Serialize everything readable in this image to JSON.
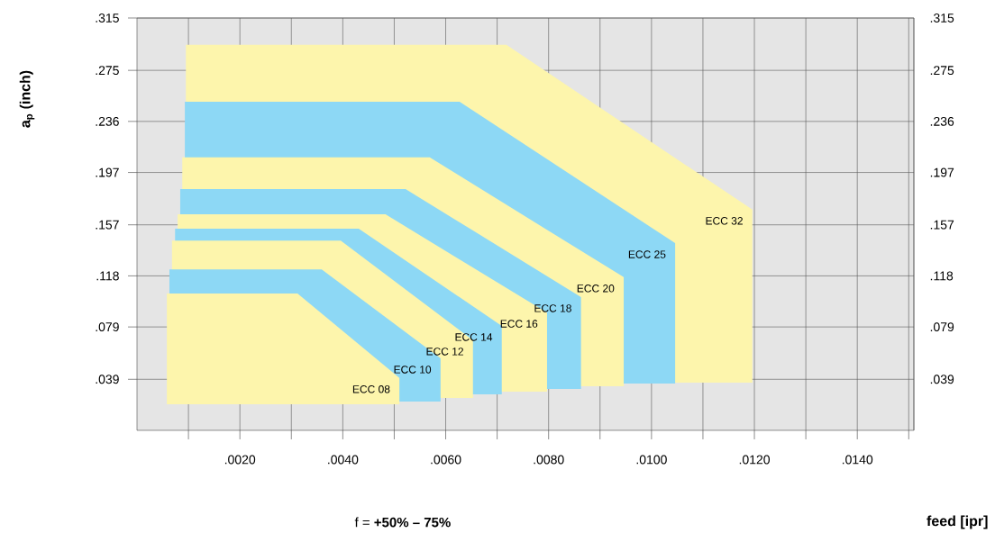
{
  "chart_data": {
    "type": "area",
    "xlabel": "feed [ipr]",
    "ylabel": "**a$_{p}$ (inch)**",
    "annotations": [
      "f = **+50% – 75%**"
    ],
    "xlim": [
      0,
      0.0151
    ],
    "ylim": [
      0,
      0.315
    ],
    "y2lim": [
      0,
      0.315
    ],
    "xticks": [
      {
        "value": 0.001,
        "label": null
      },
      {
        "value": 0.002,
        "label": ".0020"
      },
      {
        "value": 0.003,
        "label": null
      },
      {
        "value": 0.004,
        "label": ".0040"
      },
      {
        "value": 0.005,
        "label": null
      },
      {
        "value": 0.006,
        "label": ".0060"
      },
      {
        "value": 0.007,
        "label": null
      },
      {
        "value": 0.008,
        "label": ".0080"
      },
      {
        "value": 0.009,
        "label": null
      },
      {
        "value": 0.01,
        "label": ".0100"
      },
      {
        "value": 0.011,
        "label": null
      },
      {
        "value": 0.012,
        "label": ".0120"
      },
      {
        "value": 0.013,
        "label": null
      },
      {
        "value": 0.014,
        "label": ".0140"
      },
      {
        "value": 0.015,
        "label": null
      }
    ],
    "yticks": [
      {
        "value": 0.039,
        "label": ".039"
      },
      {
        "value": 0.079,
        "label": ".079"
      },
      {
        "value": 0.118,
        "label": ".118"
      },
      {
        "value": 0.157,
        "label": ".157"
      },
      {
        "value": 0.197,
        "label": ".197"
      },
      {
        "value": 0.236,
        "label": ".236"
      },
      {
        "value": 0.275,
        "label": ".275"
      },
      {
        "value": 0.315,
        "label": ".315"
      }
    ],
    "y2ticks": [
      {
        "value": 0.039,
        "label": ".039"
      },
      {
        "value": 0.079,
        "label": ".079"
      },
      {
        "value": 0.118,
        "label": ".118"
      },
      {
        "value": 0.157,
        "label": ".157"
      },
      {
        "value": 0.197,
        "label": ".197"
      },
      {
        "value": 0.236,
        "label": ".236"
      },
      {
        "value": 0.275,
        "label": ".275"
      },
      {
        "value": 0.315,
        "label": ".315"
      }
    ],
    "grid": true,
    "series": [
      {
        "name": "ECC 32",
        "color": "#fdf5ac",
        "x": [
          0.00095,
          0.00718,
          0.01196,
          0.01196
        ],
        "values": [
          0.2945,
          0.2945,
          0.1686,
          0.0365
        ]
      },
      {
        "name": "ECC 25",
        "color": "#8dd8f5",
        "x": [
          0.00093,
          0.00627,
          0.01046,
          0.01046
        ],
        "values": [
          0.251,
          0.251,
          0.143,
          0.0358
        ]
      },
      {
        "name": "ECC 20",
        "color": "#fdf5ac",
        "x": [
          0.00088,
          0.00569,
          0.00946,
          0.00946
        ],
        "values": [
          0.2085,
          0.2085,
          0.117,
          0.0337
        ]
      },
      {
        "name": "ECC 18",
        "color": "#8dd8f5",
        "x": [
          0.00084,
          0.00522,
          0.00863,
          0.00863
        ],
        "values": [
          0.1844,
          0.1844,
          0.1018,
          0.0316
        ]
      },
      {
        "name": "ECC 16",
        "color": "#fdf5ac",
        "x": [
          0.00079,
          0.00483,
          0.00797,
          0.00797
        ],
        "values": [
          0.165,
          0.165,
          0.09,
          0.0296
        ]
      },
      {
        "name": "ECC 14",
        "color": "#8dd8f5",
        "x": [
          0.00074,
          0.00431,
          0.00709,
          0.00709
        ],
        "values": [
          0.154,
          0.154,
          0.0798,
          0.0275
        ]
      },
      {
        "name": "ECC 12",
        "color": "#fdf5ac",
        "x": [
          0.00068,
          0.00396,
          0.00653,
          0.00653
        ],
        "values": [
          0.145,
          0.145,
          0.0688,
          0.0248
        ]
      },
      {
        "name": "ECC 10",
        "color": "#8dd8f5",
        "x": [
          0.00063,
          0.00359,
          0.0059,
          0.0059
        ],
        "values": [
          0.123,
          0.123,
          0.055,
          0.022
        ]
      },
      {
        "name": "ECC 08",
        "color": "#fdf5ac",
        "x": [
          0.00058,
          0.00312,
          0.0051,
          0.0051
        ],
        "values": [
          0.1046,
          0.1046,
          0.04,
          0.02
        ]
      }
    ]
  }
}
